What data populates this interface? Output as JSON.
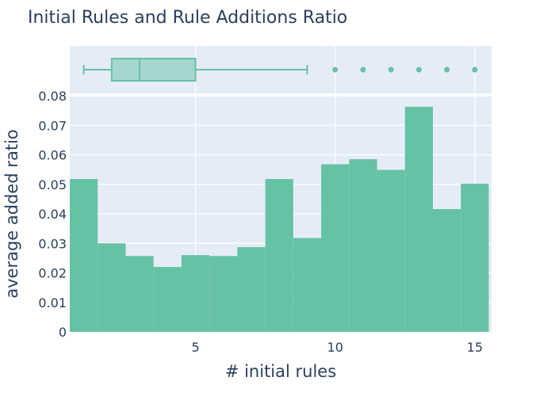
{
  "chart_data": {
    "type": "bar",
    "title": "Initial Rules and Rule Additions Ratio",
    "xlabel": "# initial rules",
    "ylabel": "average added ratio",
    "x_ticks": [
      "5",
      "10",
      "15"
    ],
    "y_ticks": [
      "0",
      "0.01",
      "0.02",
      "0.03",
      "0.04",
      "0.05",
      "0.06",
      "0.07",
      "0.08"
    ],
    "ylim": [
      0,
      0.08
    ],
    "xlim": [
      0.5,
      15.6
    ],
    "grid": true,
    "bar_color": "#66c2a5",
    "background_color": "#e5ecf6",
    "categories": [
      1,
      2,
      3,
      4,
      5,
      6,
      7,
      8,
      9,
      10,
      11,
      12,
      13,
      14,
      15
    ],
    "values": [
      0.0518,
      0.03,
      0.0257,
      0.022,
      0.026,
      0.0257,
      0.0287,
      0.0518,
      0.0318,
      0.0568,
      0.0585,
      0.0549,
      0.0763,
      0.0416,
      0.0502
    ],
    "boxplot": {
      "whisker_low": 1,
      "q1": 2,
      "median": 3,
      "q3": 5,
      "whisker_high": 9,
      "outliers": [
        10,
        11,
        12,
        13,
        14,
        15
      ]
    }
  }
}
